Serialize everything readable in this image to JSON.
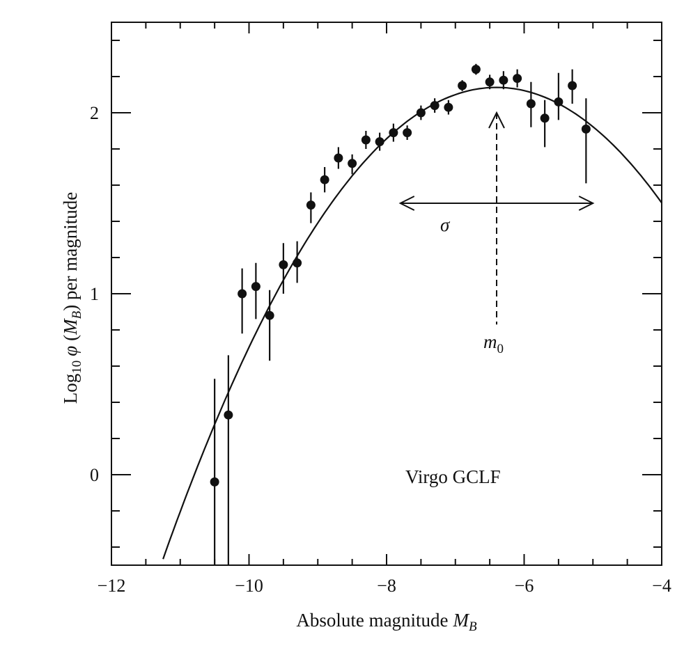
{
  "chart_data": {
    "type": "scatter",
    "title": "",
    "annotation": "Virgo GCLF",
    "xlabel": "Absolute magnitude",
    "xlabel_symbol": "M",
    "xlabel_sub": "B",
    "ylabel_pre": "Log",
    "ylabel_sub10": "10",
    "ylabel_phi": "φ",
    "ylabel_paren_open": "(",
    "ylabel_M": "M",
    "ylabel_B": "B",
    "ylabel_post": ") per magnitude",
    "xlim": [
      -12,
      -4
    ],
    "ylim": [
      -0.5,
      2.5
    ],
    "x_ticks": [
      -12,
      -10,
      -8,
      -6,
      -4
    ],
    "x_tick_labels": [
      "−12",
      "−10",
      "−8",
      "−6",
      "−4"
    ],
    "y_ticks": [
      0,
      1,
      2
    ],
    "y_tick_labels": [
      "0",
      "1",
      "2"
    ],
    "grid": false,
    "sigma_label": "σ",
    "m0_label": "m",
    "m0_sub": "0",
    "peak_marker_x": -6.4,
    "sigma_range": [
      -7.8,
      -5.0
    ],
    "curve": {
      "peak_x": -6.4,
      "peak_y": 2.14,
      "sigma": 1.4
    },
    "points": [
      {
        "x": -10.5,
        "y": -0.04,
        "err_low": 0.56,
        "err_high": 0.57
      },
      {
        "x": -10.3,
        "y": 0.33,
        "err_low": 0.9,
        "err_high": 0.33
      },
      {
        "x": -10.1,
        "y": 1.0,
        "err_low": 0.22,
        "err_high": 0.14
      },
      {
        "x": -9.9,
        "y": 1.04,
        "err_low": 0.18,
        "err_high": 0.13
      },
      {
        "x": -9.7,
        "y": 0.88,
        "err_low": 0.25,
        "err_high": 0.14
      },
      {
        "x": -9.5,
        "y": 1.16,
        "err_low": 0.16,
        "err_high": 0.12
      },
      {
        "x": -9.3,
        "y": 1.17,
        "err_low": 0.11,
        "err_high": 0.12
      },
      {
        "x": -9.1,
        "y": 1.49,
        "err_low": 0.1,
        "err_high": 0.07
      },
      {
        "x": -8.9,
        "y": 1.63,
        "err_low": 0.07,
        "err_high": 0.07
      },
      {
        "x": -8.7,
        "y": 1.75,
        "err_low": 0.06,
        "err_high": 0.06
      },
      {
        "x": -8.5,
        "y": 1.72,
        "err_low": 0.06,
        "err_high": 0.05
      },
      {
        "x": -8.3,
        "y": 1.85,
        "err_low": 0.05,
        "err_high": 0.05
      },
      {
        "x": -8.1,
        "y": 1.84,
        "err_low": 0.05,
        "err_high": 0.05
      },
      {
        "x": -7.9,
        "y": 1.89,
        "err_low": 0.05,
        "err_high": 0.05
      },
      {
        "x": -7.7,
        "y": 1.89,
        "err_low": 0.04,
        "err_high": 0.04
      },
      {
        "x": -7.5,
        "y": 2.0,
        "err_low": 0.04,
        "err_high": 0.04
      },
      {
        "x": -7.3,
        "y": 2.04,
        "err_low": 0.04,
        "err_high": 0.04
      },
      {
        "x": -7.1,
        "y": 2.03,
        "err_low": 0.04,
        "err_high": 0.04
      },
      {
        "x": -6.9,
        "y": 2.15,
        "err_low": 0.03,
        "err_high": 0.03
      },
      {
        "x": -6.7,
        "y": 2.24,
        "err_low": 0.03,
        "err_high": 0.03
      },
      {
        "x": -6.5,
        "y": 2.17,
        "err_low": 0.04,
        "err_high": 0.04
      },
      {
        "x": -6.3,
        "y": 2.18,
        "err_low": 0.05,
        "err_high": 0.05
      },
      {
        "x": -6.1,
        "y": 2.19,
        "err_low": 0.05,
        "err_high": 0.05
      },
      {
        "x": -5.9,
        "y": 2.05,
        "err_low": 0.13,
        "err_high": 0.12
      },
      {
        "x": -5.7,
        "y": 1.97,
        "err_low": 0.16,
        "err_high": 0.1
      },
      {
        "x": -5.5,
        "y": 2.06,
        "err_low": 0.1,
        "err_high": 0.16
      },
      {
        "x": -5.3,
        "y": 2.15,
        "err_low": 0.1,
        "err_high": 0.09
      },
      {
        "x": -5.1,
        "y": 1.91,
        "err_low": 0.3,
        "err_high": 0.17
      }
    ]
  }
}
